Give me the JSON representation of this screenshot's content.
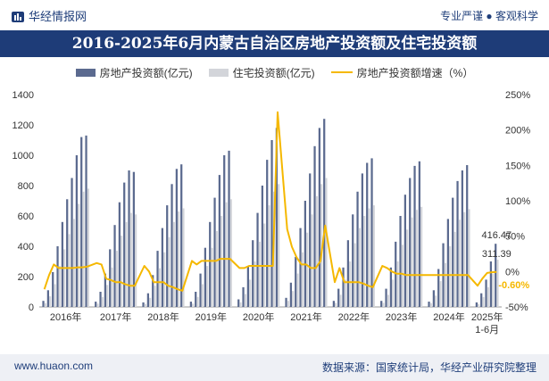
{
  "header": {
    "brand": "华经情报网",
    "tagline": "专业严谨 ● 客观科学",
    "title": "2016-2025年6月内蒙古自治区房地产投资额及住宅投资额"
  },
  "footer": {
    "url": "www.huaon.com",
    "source": "数据来源：国家统计局，华经产业研究院整理"
  },
  "colors": {
    "real_estate": "#5b6a8f",
    "residential": "#d3d5da",
    "growth": "#f5b800",
    "growth_last_label": "#f5b800",
    "title_bg": "#1e3c78"
  },
  "chart_data": {
    "type": "bar+line",
    "y_left": {
      "min": 0,
      "max": 1400,
      "ticks": [
        "0",
        "200",
        "400",
        "600",
        "800",
        "1000",
        "1200",
        "1400"
      ]
    },
    "y_right": {
      "min": -50,
      "max": 250,
      "ticks": [
        "-50%",
        "0%",
        "50%",
        "100%",
        "150%",
        "200%",
        "250%"
      ]
    },
    "year_labels": [
      "2016年",
      "2017年",
      "2018年",
      "2019年",
      "2020年",
      "2021年",
      "2022年",
      "2023年",
      "2024年",
      "2025年\n1-6月"
    ],
    "series": [
      {
        "name": "房地产投资额(亿元)",
        "kind": "bar",
        "values_by_year": [
          [
            40,
            110,
            230,
            400,
            560,
            710,
            850,
            1000,
            1120,
            1130
          ],
          [
            35,
            100,
            220,
            380,
            540,
            690,
            820,
            900,
            890
          ],
          [
            30,
            90,
            210,
            370,
            520,
            670,
            810,
            910,
            940
          ],
          [
            35,
            100,
            220,
            390,
            560,
            720,
            870,
            1000,
            1030
          ],
          [
            50,
            130,
            270,
            440,
            620,
            800,
            970,
            1100,
            1180
          ],
          [
            60,
            160,
            330,
            520,
            700,
            880,
            1060,
            1180,
            1240
          ],
          [
            40,
            120,
            260,
            440,
            610,
            760,
            880,
            950,
            980
          ],
          [
            40,
            120,
            260,
            430,
            600,
            740,
            850,
            930,
            960
          ],
          [
            35,
            110,
            250,
            420,
            580,
            720,
            830,
            900,
            935
          ],
          [
            30,
            90,
            180,
            300,
            416.47
          ]
        ]
      },
      {
        "name": "住宅投资额(亿元)",
        "kind": "bar",
        "values_by_year": [
          [
            25,
            70,
            150,
            270,
            380,
            480,
            580,
            680,
            760,
            780
          ],
          [
            22,
            65,
            145,
            260,
            370,
            470,
            560,
            620,
            610
          ],
          [
            20,
            60,
            140,
            255,
            360,
            460,
            560,
            630,
            650
          ],
          [
            22,
            66,
            150,
            270,
            390,
            500,
            600,
            690,
            710
          ],
          [
            30,
            85,
            180,
            300,
            430,
            550,
            670,
            760,
            810
          ],
          [
            40,
            105,
            220,
            360,
            490,
            610,
            730,
            810,
            850
          ],
          [
            27,
            80,
            180,
            300,
            420,
            520,
            600,
            650,
            670
          ],
          [
            27,
            80,
            180,
            300,
            410,
            510,
            590,
            640,
            660
          ],
          [
            25,
            75,
            170,
            290,
            400,
            495,
            575,
            625,
            645
          ],
          [
            20,
            65,
            130,
            220,
            311.39
          ]
        ]
      },
      {
        "name": "房地产投资额增速（%）",
        "kind": "line",
        "values_by_year": [
          [
            -25,
            -5,
            10,
            5,
            5,
            5,
            5,
            6,
            6,
            7
          ],
          [
            12,
            10,
            -10,
            -12,
            -15,
            -15,
            -18,
            -20,
            -20
          ],
          [
            8,
            0,
            -15,
            -15,
            -15,
            -20,
            -22,
            -25,
            -27
          ],
          [
            15,
            10,
            15,
            15,
            15,
            15,
            18,
            18,
            18
          ],
          [
            5,
            5,
            8,
            8,
            8,
            8,
            8,
            8,
            225
          ],
          [
            60,
            35,
            20,
            10,
            10,
            5,
            5,
            15,
            65
          ],
          [
            -15,
            5,
            -15,
            -15,
            -15,
            -15,
            -17,
            -20,
            -22
          ],
          [
            8,
            5,
            0,
            -3,
            -3,
            -5,
            -5,
            -5,
            -5
          ],
          [
            -5,
            -5,
            -5,
            -5,
            -5,
            -5,
            -5,
            -5,
            -5
          ],
          [
            -20,
            -10,
            -2,
            -1,
            -0.6
          ]
        ]
      }
    ],
    "annotations": [
      "416.47",
      "311.39",
      "-0.60%"
    ]
  }
}
